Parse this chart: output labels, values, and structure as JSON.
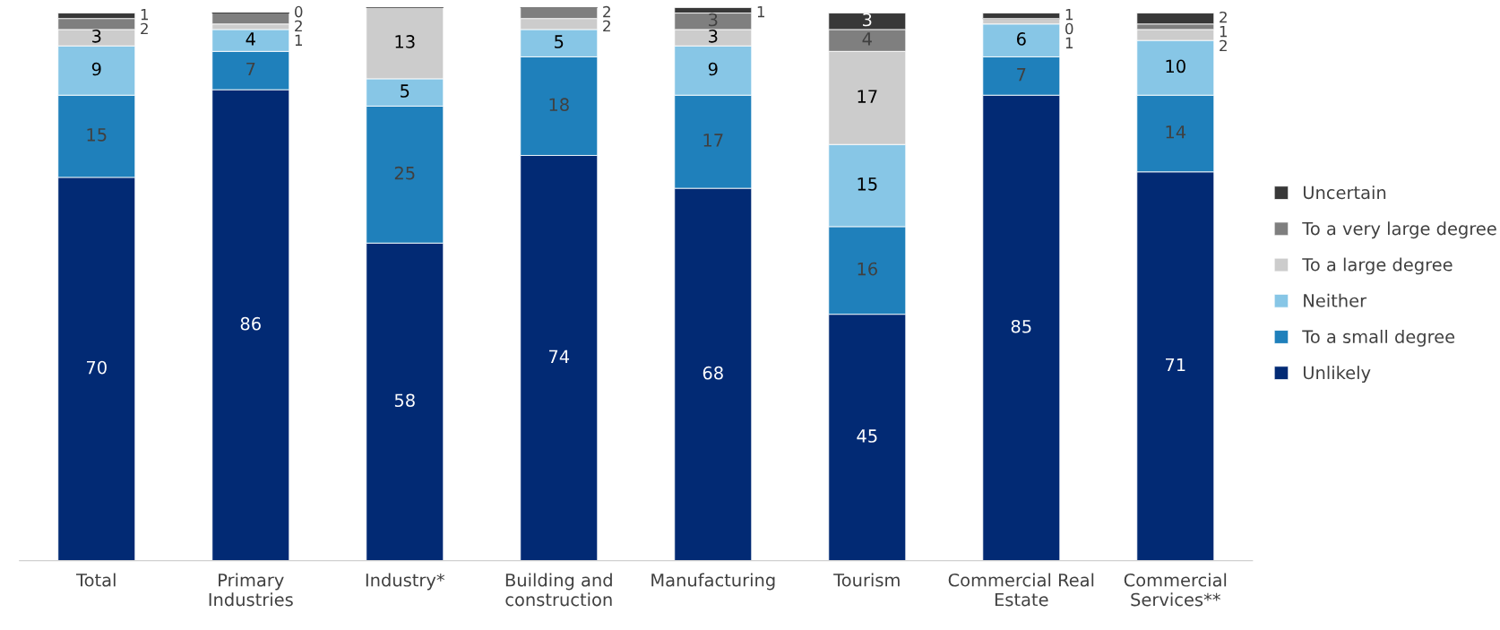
{
  "chart_data": {
    "type": "bar",
    "stacked": true,
    "categories": [
      "Total",
      "Primary\nIndustries",
      "Industry*",
      "Building and\nconstruction",
      "Manufacturing",
      "Tourism",
      "Commercial Real\nEstate",
      "Commercial\nServices**"
    ],
    "series": [
      {
        "name": "Unlikely",
        "color": "#022a74",
        "values": [
          70,
          86,
          58,
          74,
          68,
          45,
          85,
          71
        ],
        "value_labels": [
          "70",
          "86",
          "58",
          "74",
          "68",
          "45",
          "85",
          "71"
        ]
      },
      {
        "name": "To a small degree",
        "color": "#1f80bb",
        "values": [
          15,
          7,
          25,
          18,
          17,
          16,
          7,
          14
        ],
        "value_labels": [
          "15",
          "7",
          "25",
          "18",
          "17",
          "16",
          "7",
          "14"
        ]
      },
      {
        "name": "Neither",
        "color": "#87c6e6",
        "values": [
          9,
          4,
          5,
          5,
          9,
          15,
          6,
          10
        ],
        "value_labels": [
          "9",
          "4",
          "5",
          "5",
          "9",
          "15",
          "6",
          "10"
        ]
      },
      {
        "name": "To a large degree",
        "color": "#cccccc",
        "values": [
          3,
          1,
          13,
          2,
          3,
          17,
          1,
          2
        ],
        "value_labels": [
          "3",
          "1",
          "13",
          "2",
          "3",
          "17",
          "1",
          "2"
        ]
      },
      {
        "name": "To a very large degree",
        "color": "#7f7f7f",
        "values": [
          2,
          2,
          null,
          2,
          3,
          4,
          0,
          1
        ],
        "value_labels": [
          "2",
          "2",
          null,
          "2",
          "3",
          "4",
          "0",
          "1"
        ]
      },
      {
        "name": "Uncertain",
        "color": "#383838",
        "values": [
          1,
          0,
          null,
          null,
          1,
          3,
          1,
          2
        ],
        "value_labels": [
          "1",
          "0",
          null,
          null,
          "1",
          "3",
          "1",
          "2"
        ]
      }
    ],
    "ylim": [
      0,
      101
    ],
    "tick_labels": "x",
    "grid": false,
    "legend": "right"
  }
}
